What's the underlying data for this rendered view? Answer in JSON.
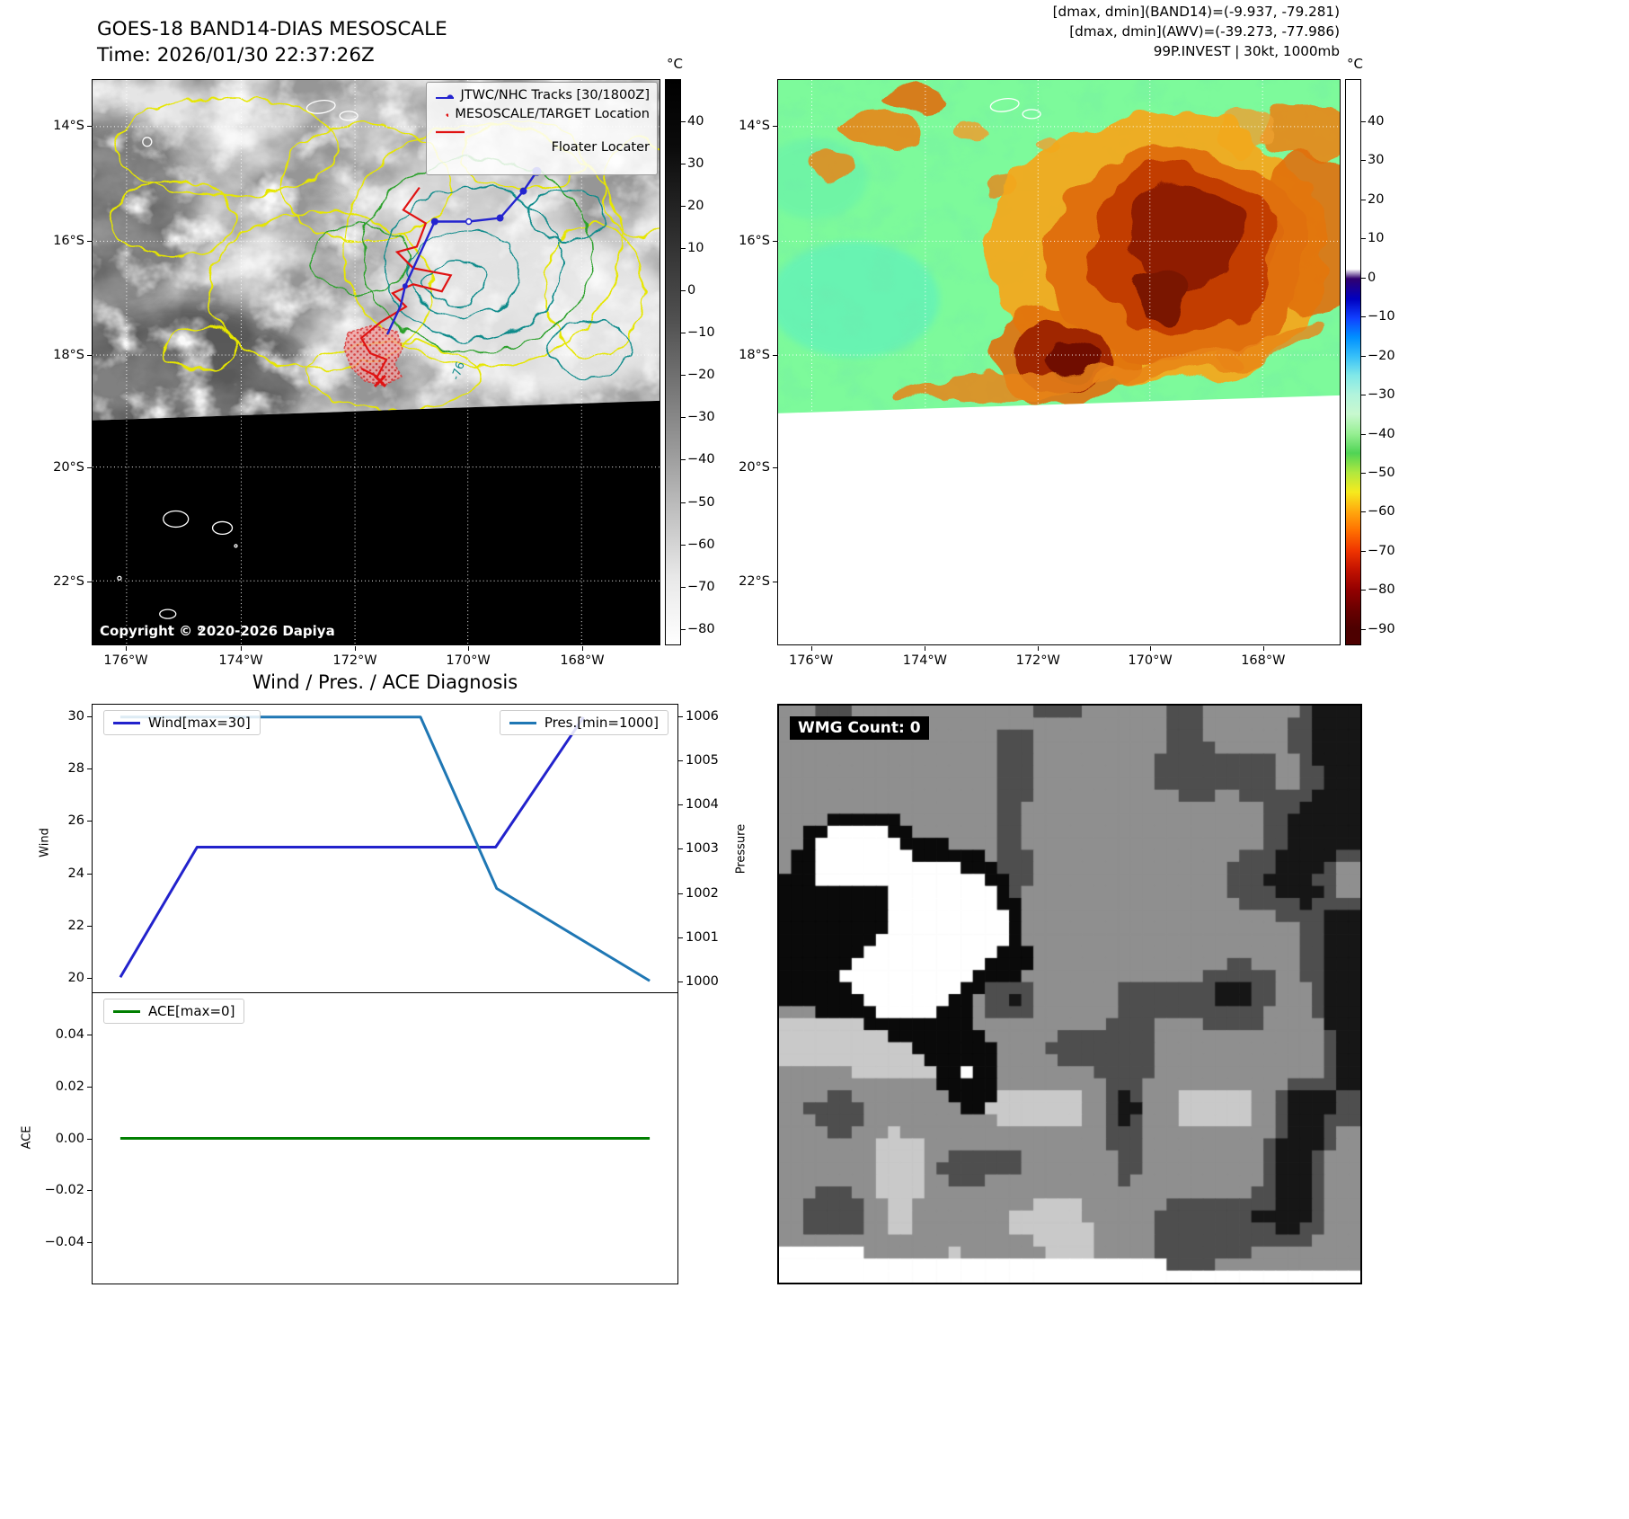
{
  "colors": {
    "wind": "#2222cc",
    "pressure": "#1f77b4",
    "ace": "#007f00",
    "track": "#2424cf",
    "floater": "#e01212",
    "contour_yellow": "#e6e600",
    "contour_teal": "#0e8a8a",
    "map_green": "#7dfa9b"
  },
  "top_left": {
    "title": "GOES-18 BAND14-DIAS MESOSCALE",
    "time_label": "Time: 2026/01/30 22:37:26Z",
    "legend": {
      "items": [
        {
          "label": "JTWC/NHC Tracks [30/1800Z]"
        },
        {
          "label": "MESOSCALE/TARGET Location"
        },
        {
          "label": "Floater Locater"
        }
      ]
    },
    "copyright": "Copyright © 2020-2026 Dapiya",
    "contour_label": "-76",
    "axes": {
      "y_ticks": [
        "14°S",
        "16°S",
        "18°S",
        "20°S",
        "22°S"
      ],
      "x_ticks": [
        "176°W",
        "174°W",
        "172°W",
        "170°W",
        "168°W"
      ]
    },
    "colorbar": {
      "unit": "°C",
      "ticks": [
        "40",
        "30",
        "20",
        "10",
        "0",
        "−10",
        "−20",
        "−30",
        "−40",
        "−50",
        "−60",
        "−70",
        "−80"
      ]
    }
  },
  "top_right": {
    "annotations": [
      "[dmax, dmin](BAND14)=(-9.937, -79.281)",
      "[dmax, dmin](AWV)=(-39.273, -77.986)",
      "99P.INVEST | 30kt, 1000mb"
    ],
    "axes": {
      "y_ticks": [
        "14°S",
        "16°S",
        "18°S",
        "20°S",
        "22°S"
      ],
      "x_ticks": [
        "176°W",
        "174°W",
        "172°W",
        "170°W",
        "168°W"
      ]
    },
    "colorbar": {
      "unit": "°C",
      "ticks": [
        "40",
        "30",
        "20",
        "10",
        "0",
        "−10",
        "−20",
        "−30",
        "−40",
        "−50",
        "−60",
        "−70",
        "−80",
        "−90"
      ]
    }
  },
  "wmg": {
    "label": "WMG Count: 0"
  },
  "chart_data": [
    {
      "type": "line",
      "title": "Wind / Pres. / ACE Diagnosis",
      "axes": {
        "left_label": "Wind",
        "right_label": "Pressure",
        "x_lim": [
          0,
          1
        ],
        "left_lim": [
          19.42,
          30.48
        ],
        "right_lim": [
          999.74,
          1006.28
        ],
        "left_ticks": [
          {
            "v": 30,
            "label": "30"
          },
          {
            "v": 28,
            "label": "28"
          },
          {
            "v": 26,
            "label": "26"
          },
          {
            "v": 24,
            "label": "24"
          },
          {
            "v": 22,
            "label": "22"
          },
          {
            "v": 20,
            "label": "20"
          }
        ],
        "right_ticks": [
          {
            "v": 1006,
            "label": "1006"
          },
          {
            "v": 1005,
            "label": "1005"
          },
          {
            "v": 1004,
            "label": "1004"
          },
          {
            "v": 1003,
            "label": "1003"
          },
          {
            "v": 1002,
            "label": "1002"
          },
          {
            "v": 1001,
            "label": "1001"
          },
          {
            "v": 1000,
            "label": "1000"
          }
        ]
      },
      "series": [
        {
          "name": "Wind[max=30]",
          "axis": "left",
          "color_key": "wind",
          "points": [
            [
              0.0,
              20
            ],
            [
              0.145,
              25
            ],
            [
              0.709,
              25
            ],
            [
              0.875,
              30
            ]
          ]
        },
        {
          "name": "Pres.[min=1000]",
          "axis": "right",
          "color_key": "pressure",
          "points": [
            [
              0.0,
              1006
            ],
            [
              0.567,
              1006
            ],
            [
              0.711,
              1002.1
            ],
            [
              1.0,
              1000
            ]
          ]
        }
      ]
    },
    {
      "type": "line",
      "axes": {
        "left_label": "ACE",
        "x_lim": [
          0,
          1
        ],
        "left_lim": [
          -0.0565,
          0.0565
        ],
        "left_ticks": [
          {
            "v": 0.04,
            "label": "0.04"
          },
          {
            "v": 0.02,
            "label": "0.02"
          },
          {
            "v": 0,
            "label": "0.00"
          },
          {
            "v": -0.02,
            "label": "−0.02"
          },
          {
            "v": -0.04,
            "label": "−0.04"
          }
        ]
      },
      "series": [
        {
          "name": "ACE[max=0]",
          "axis": "left",
          "color_key": "ace",
          "points": [
            [
              0.0,
              0
            ],
            [
              1.0,
              0
            ]
          ]
        }
      ]
    }
  ]
}
